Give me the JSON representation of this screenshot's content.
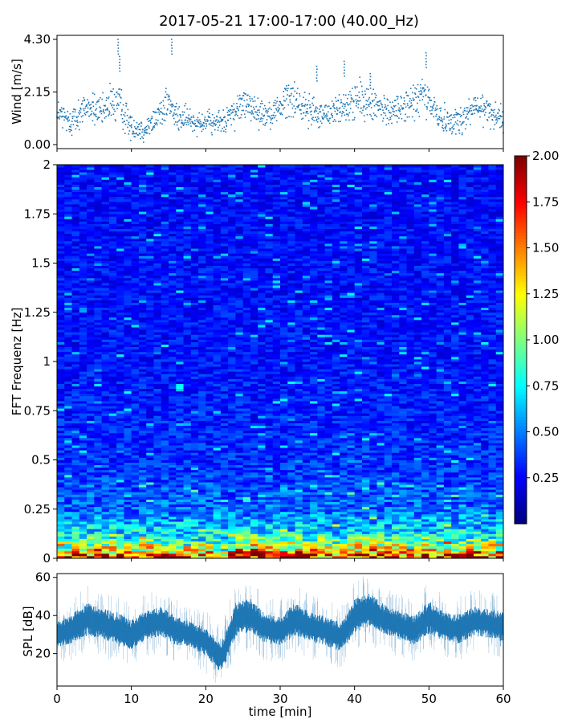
{
  "title": "2017-05-21 17:00-17:00 (40.00_Hz)",
  "chart_data": [
    {
      "id": "wind",
      "type": "scatter",
      "ylabel": "Wind [m/s]",
      "xlim": [
        0,
        60
      ],
      "ylim": [
        0,
        4.3
      ],
      "yticks": [
        {
          "value": 0.0,
          "label": "0.00"
        },
        {
          "value": 2.15,
          "label": "2.15"
        },
        {
          "value": 4.3,
          "label": "4.30"
        }
      ],
      "series_color": "#1f77b4",
      "envelope": {
        "t": [
          0,
          2,
          4,
          6,
          8,
          10,
          12,
          14,
          15,
          16,
          18,
          20,
          22,
          24,
          25,
          26,
          28,
          30,
          31,
          32,
          34,
          36,
          38,
          39,
          40,
          42,
          44,
          46,
          48,
          49,
          50,
          52,
          54,
          56,
          58,
          60
        ],
        "mean": [
          1.3,
          0.9,
          1.6,
          1.3,
          1.8,
          0.7,
          0.6,
          1.4,
          1.7,
          1.1,
          1.0,
          0.9,
          0.9,
          1.3,
          1.7,
          1.5,
          1.2,
          1.5,
          2.0,
          1.8,
          1.4,
          1.2,
          1.5,
          1.4,
          1.9,
          1.6,
          1.4,
          1.5,
          1.7,
          2.0,
          1.7,
          1.0,
          0.9,
          1.5,
          1.4,
          1.1
        ],
        "spread": [
          0.5,
          0.5,
          0.5,
          0.5,
          0.8,
          0.4,
          0.4,
          0.5,
          0.7,
          0.5,
          0.4,
          0.4,
          0.4,
          0.5,
          0.6,
          0.5,
          0.5,
          0.5,
          0.7,
          0.6,
          0.5,
          0.5,
          0.5,
          0.6,
          0.7,
          0.6,
          0.5,
          0.5,
          0.6,
          0.8,
          0.6,
          0.5,
          0.5,
          0.5,
          0.5,
          0.5
        ]
      },
      "peaks": [
        [
          8.2,
          4.3
        ],
        [
          15.4,
          4.3
        ],
        [
          49.6,
          3.75
        ],
        [
          8.4,
          3.6
        ],
        [
          38.6,
          3.4
        ],
        [
          34.9,
          3.2
        ],
        [
          42.1,
          2.9
        ]
      ]
    },
    {
      "id": "spectrogram",
      "type": "heatmap",
      "ylabel": "FFT Frequenz [Hz]",
      "xlim": [
        0,
        60
      ],
      "ylim": [
        0,
        2
      ],
      "yticks": [
        {
          "value": 0,
          "label": "0"
        },
        {
          "value": 0.25,
          "label": "0.25"
        },
        {
          "value": 0.5,
          "label": "0.5"
        },
        {
          "value": 0.75,
          "label": "0.75"
        },
        {
          "value": 1,
          "label": "1"
        },
        {
          "value": 1.25,
          "label": "1.25"
        },
        {
          "value": 1.5,
          "label": "1.5"
        },
        {
          "value": 1.75,
          "label": "1.75"
        },
        {
          "value": 2,
          "label": "2"
        }
      ],
      "colormap": "jet",
      "clim": [
        0.0,
        2.0
      ],
      "colorbar_ticks": [
        {
          "value": 0.25,
          "label": "0.25"
        },
        {
          "value": 0.5,
          "label": "0.50"
        },
        {
          "value": 0.75,
          "label": "0.75"
        },
        {
          "value": 1.0,
          "label": "1.00"
        },
        {
          "value": 1.25,
          "label": "1.25"
        },
        {
          "value": 1.5,
          "label": "1.50"
        },
        {
          "value": 1.75,
          "label": "1.75"
        },
        {
          "value": 2.0,
          "label": "2.00"
        }
      ],
      "time_bins": 60,
      "freq_bins": 160,
      "typical_level_by_freq": [
        {
          "f": 0.0,
          "level": 1.7
        },
        {
          "f": 0.05,
          "level": 1.1
        },
        {
          "f": 0.1,
          "level": 0.75
        },
        {
          "f": 0.25,
          "level": 0.45
        },
        {
          "f": 0.5,
          "level": 0.33
        },
        {
          "f": 1.0,
          "level": 0.28
        },
        {
          "f": 2.0,
          "level": 0.26
        }
      ]
    },
    {
      "id": "spl",
      "type": "area",
      "ylabel": "SPL [dB]",
      "xlabel": "time [min]",
      "xlim": [
        0,
        60
      ],
      "ylim": [
        3,
        62
      ],
      "yticks": [
        {
          "value": 20,
          "label": "20"
        },
        {
          "value": 40,
          "label": "40"
        },
        {
          "value": 60,
          "label": "60"
        }
      ],
      "xticks": [
        {
          "value": 0,
          "label": "0"
        },
        {
          "value": 10,
          "label": "10"
        },
        {
          "value": 20,
          "label": "20"
        },
        {
          "value": 30,
          "label": "30"
        },
        {
          "value": 40,
          "label": "40"
        },
        {
          "value": 50,
          "label": "50"
        },
        {
          "value": 60,
          "label": "60"
        }
      ],
      "series_color": "#1f77b4",
      "envelope": {
        "t": [
          0,
          2,
          4,
          6,
          8,
          10,
          12,
          14,
          16,
          18,
          20,
          21,
          22,
          23,
          24,
          26,
          28,
          30,
          32,
          34,
          36,
          38,
          39,
          40,
          42,
          44,
          46,
          48,
          50,
          52,
          54,
          56,
          58,
          60
        ],
        "mean": [
          30,
          33,
          38,
          36,
          33,
          30,
          35,
          37,
          32,
          30,
          26,
          22,
          18,
          26,
          38,
          40,
          33,
          32,
          38,
          34,
          32,
          29,
          33,
          40,
          43,
          38,
          35,
          32,
          39,
          34,
          33,
          37,
          36,
          34
        ],
        "band": [
          6,
          7,
          8,
          7,
          8,
          7,
          7,
          7,
          7,
          6,
          7,
          7,
          7,
          8,
          8,
          8,
          7,
          7,
          8,
          7,
          7,
          7,
          7,
          8,
          8,
          7,
          7,
          7,
          8,
          7,
          7,
          7,
          7,
          7
        ]
      }
    }
  ]
}
